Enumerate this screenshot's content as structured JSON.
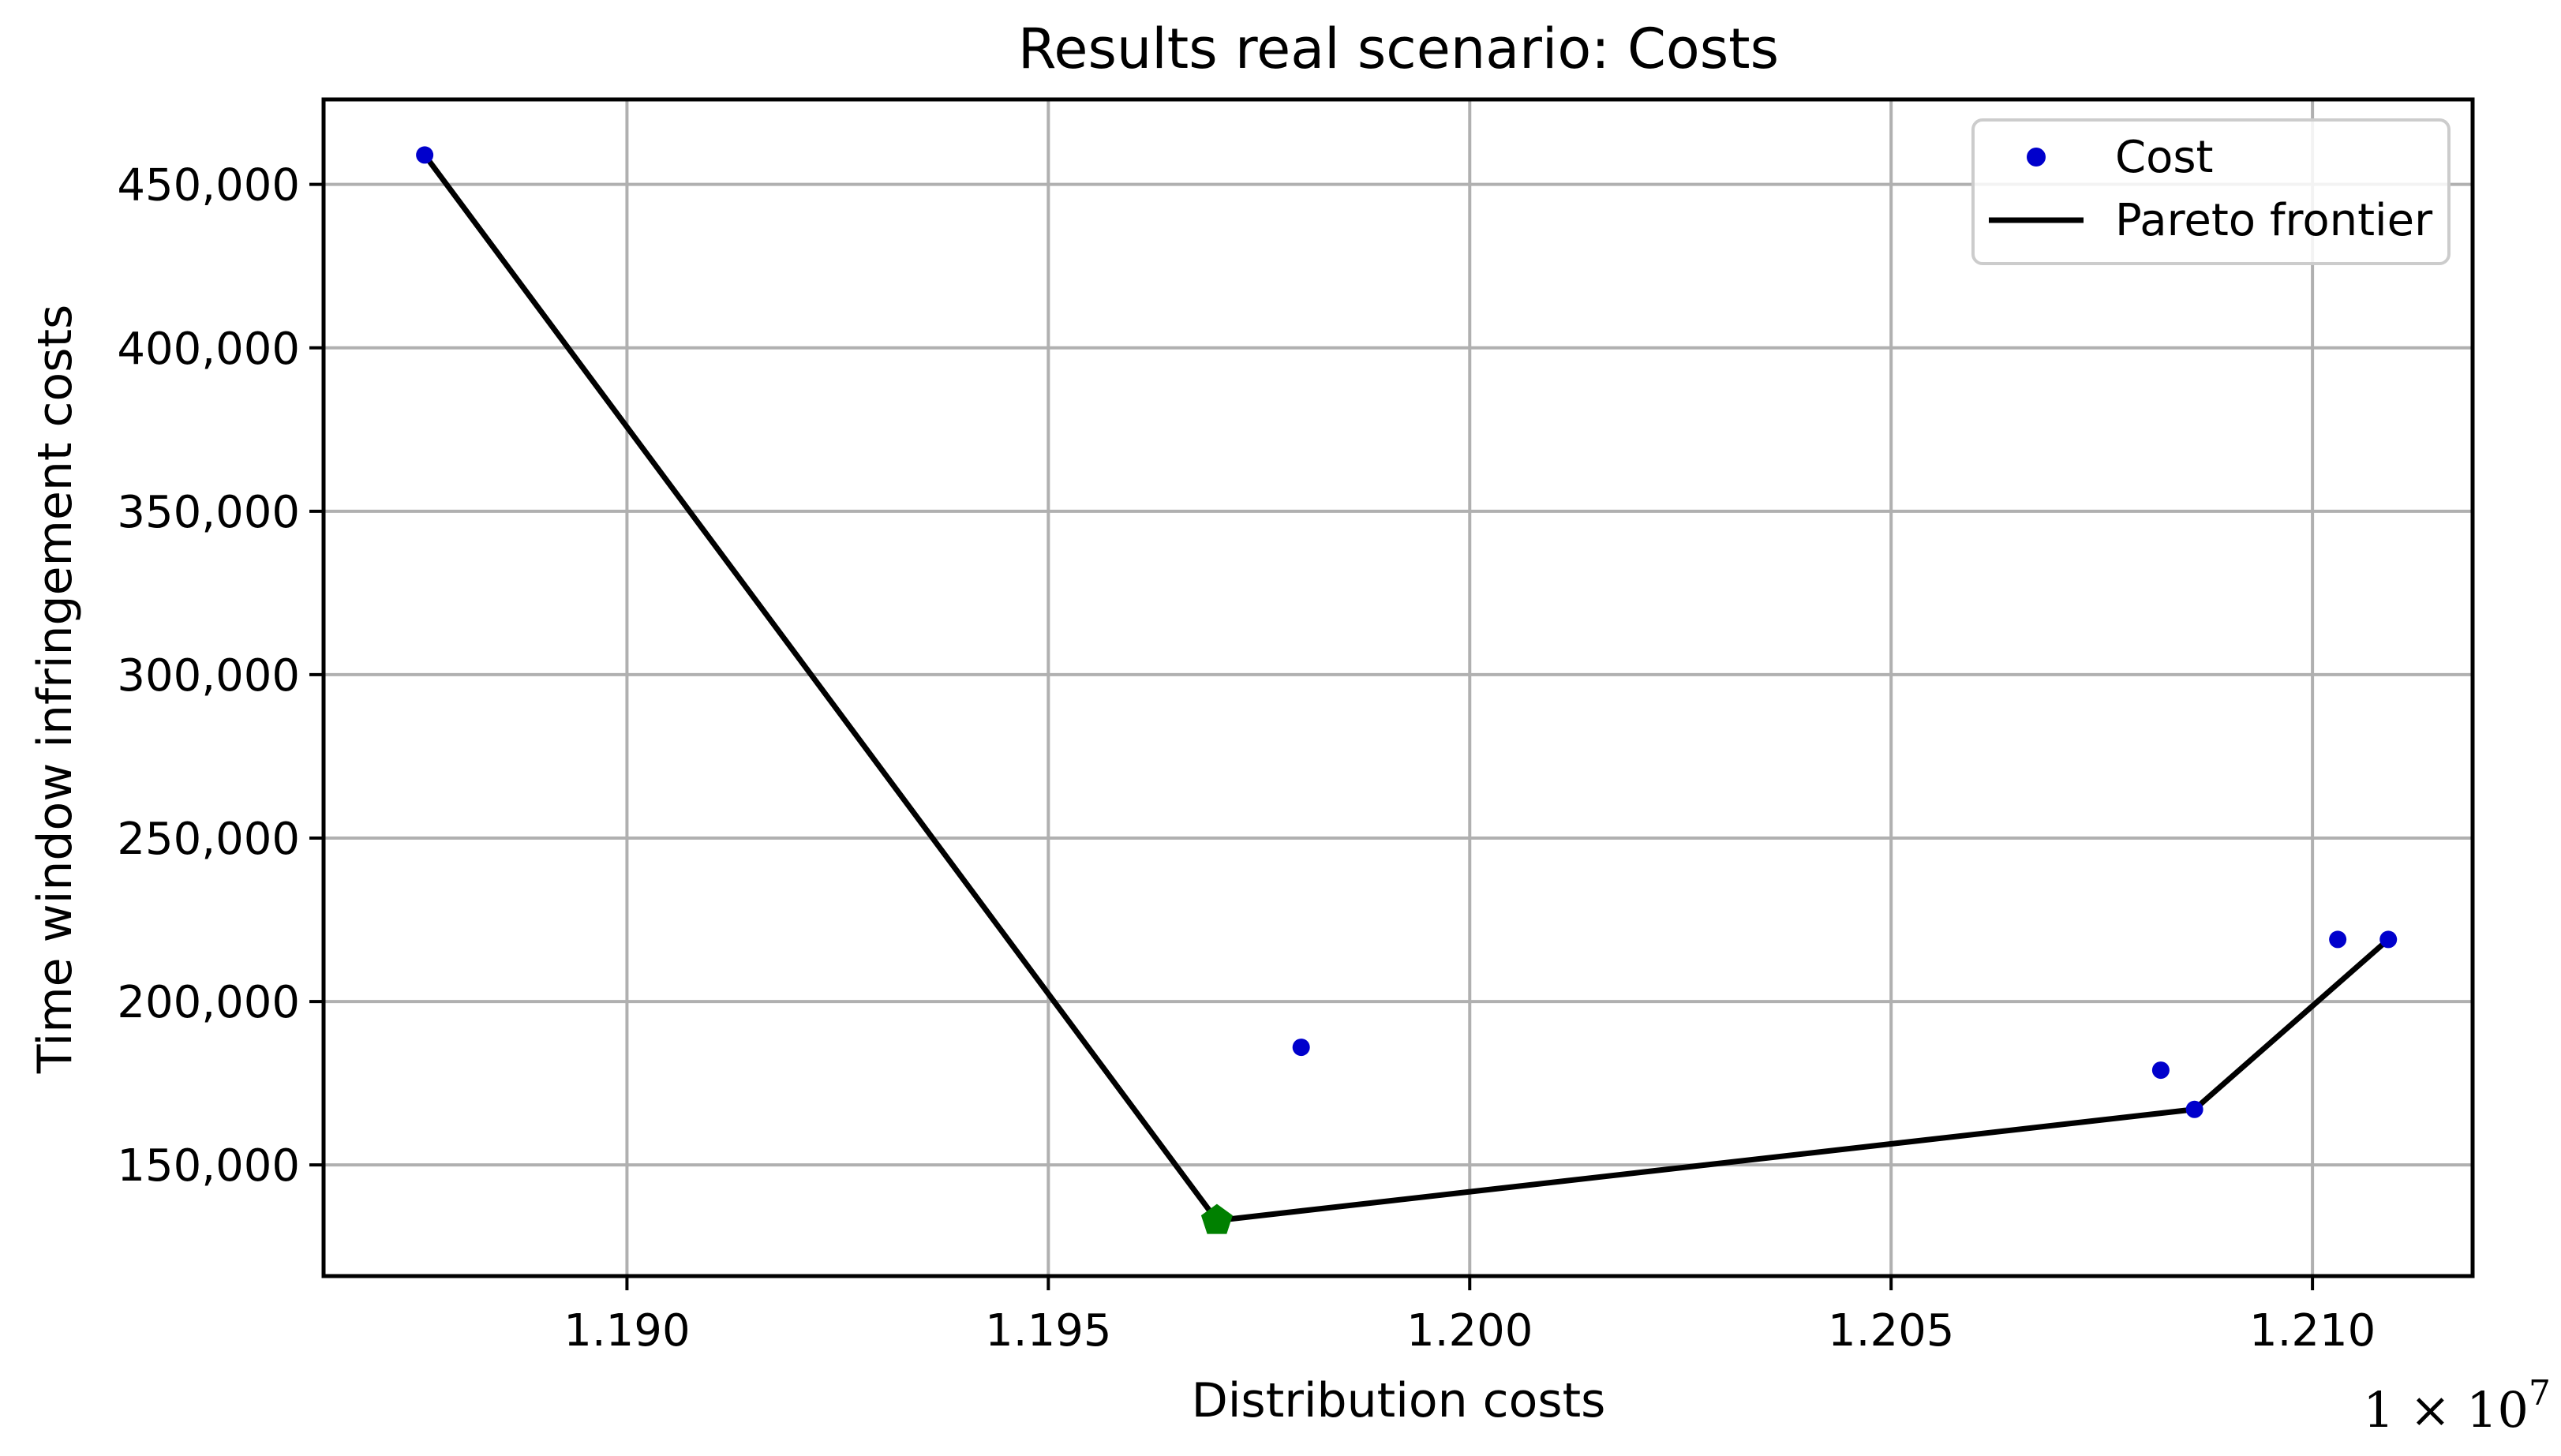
{
  "chart_data": {
    "type": "scatter",
    "title": "Results real scenario: Costs",
    "xlabel": "Distribution costs",
    "ylabel": "Time window infringement costs",
    "x_offset_label": "1 × 10",
    "x_offset_exponent": "7",
    "xlim": [
      1.1864,
      1.2119
    ],
    "ylim": [
      116000,
      476000
    ],
    "x_ticks": [
      1.19,
      1.195,
      1.2,
      1.205,
      1.21
    ],
    "x_tick_labels": [
      "1.190",
      "1.195",
      "1.200",
      "1.205",
      "1.210"
    ],
    "y_ticks": [
      150000,
      200000,
      250000,
      300000,
      350000,
      400000,
      450000
    ],
    "y_tick_labels": [
      "150,000",
      "200,000",
      "250,000",
      "300,000",
      "350,000",
      "400,000",
      "450,000"
    ],
    "grid": true,
    "legend_position": "top-right",
    "series": [
      {
        "name": "Cost",
        "kind": "scatter",
        "color": "#0000cc",
        "points": [
          {
            "x": 1.1876,
            "y": 459000
          },
          {
            "x": 1.197,
            "y": 133000
          },
          {
            "x": 1.198,
            "y": 186000
          },
          {
            "x": 1.2082,
            "y": 179000
          },
          {
            "x": 1.2086,
            "y": 167000
          },
          {
            "x": 1.2103,
            "y": 219000
          },
          {
            "x": 1.2109,
            "y": 219000
          }
        ]
      },
      {
        "name": "Pareto frontier",
        "kind": "line",
        "color": "#000000",
        "points": [
          {
            "x": 1.1876,
            "y": 459000
          },
          {
            "x": 1.197,
            "y": 133000
          },
          {
            "x": 1.2086,
            "y": 167000
          },
          {
            "x": 1.2109,
            "y": 219000
          }
        ]
      }
    ],
    "highlight": {
      "marker": "pentagon",
      "color": "#008000",
      "point": {
        "x": 1.197,
        "y": 133000
      }
    }
  }
}
